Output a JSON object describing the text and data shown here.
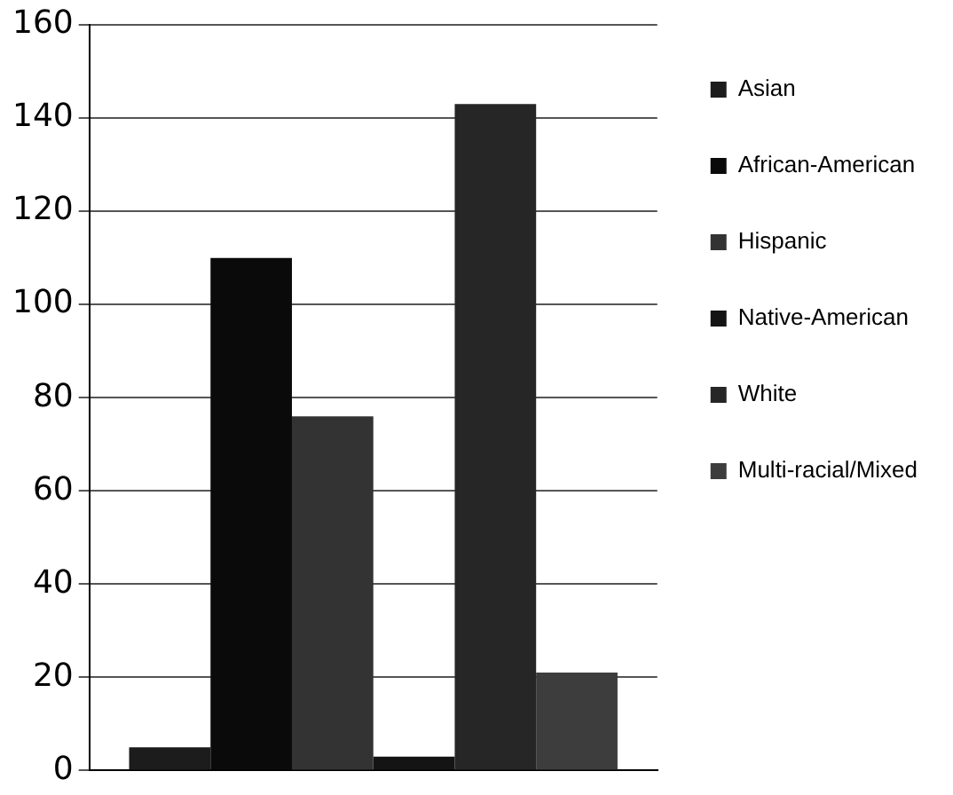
{
  "chart_data": {
    "type": "bar",
    "categories": [
      null
    ],
    "series": [
      {
        "name": "Asian",
        "color": "#1c1c1c",
        "values": [
          5
        ]
      },
      {
        "name": "African-American",
        "color": "#0a0a0a",
        "values": [
          110
        ]
      },
      {
        "name": "Hispanic",
        "color": "#333333",
        "values": [
          76
        ]
      },
      {
        "name": "Native-American",
        "color": "#141414",
        "values": [
          3
        ]
      },
      {
        "name": "White",
        "color": "#262626",
        "values": [
          143
        ]
      },
      {
        "name": "Multi-racial/Mixed",
        "color": "#3d3d3d",
        "values": [
          21
        ]
      }
    ],
    "ylim": [
      0,
      160
    ],
    "yticks": [
      0,
      20,
      40,
      60,
      80,
      100,
      120,
      140,
      160
    ],
    "grid": "y",
    "legend": "right"
  }
}
